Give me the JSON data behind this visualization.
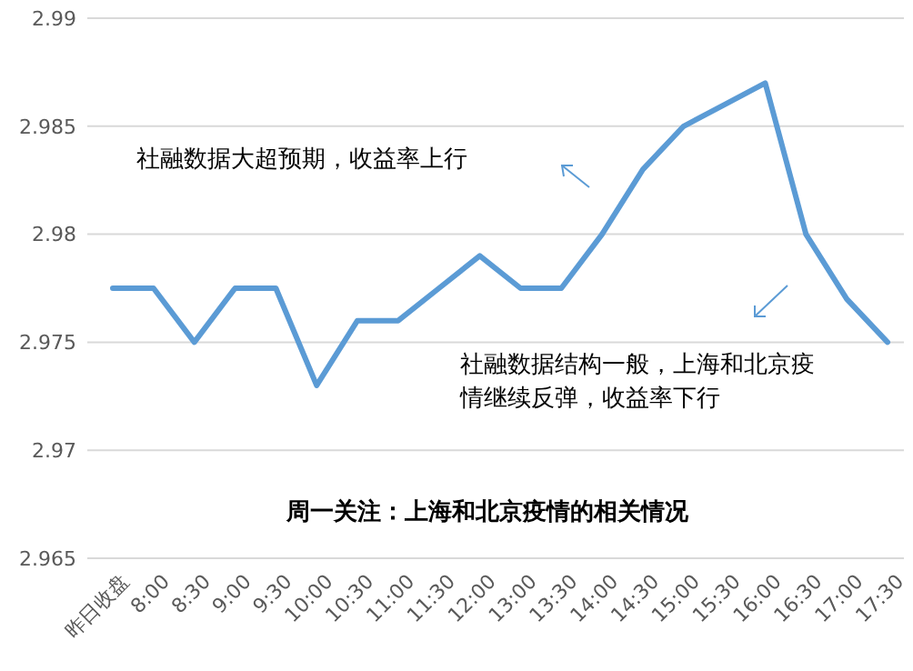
{
  "chart_data": {
    "type": "line",
    "title": "周一关注：上海和北京疫情的相关情况",
    "categories": [
      "昨日收盘",
      "8:00",
      "8:30",
      "9:00",
      "9:30",
      "10:00",
      "10:30",
      "11:00",
      "11:30",
      "12:00",
      "13:00",
      "13:30",
      "14:00",
      "14:30",
      "15:00",
      "15:30",
      "16:00",
      "16:30",
      "17:00",
      "17:30"
    ],
    "series": [
      {
        "color": "#5b9bd5",
        "values": [
          2.9775,
          2.9775,
          2.975,
          2.9775,
          2.9775,
          2.973,
          2.976,
          2.976,
          2.9775,
          2.979,
          2.9775,
          2.9775,
          2.98,
          2.983,
          2.985,
          2.986,
          2.987,
          2.98,
          2.977,
          2.975
        ]
      }
    ],
    "ylim": [
      2.965,
      2.99
    ],
    "yticks": [
      2.965,
      2.97,
      2.975,
      2.98,
      2.985,
      2.99
    ],
    "grid": "y",
    "marker": "none",
    "line_style": "solid",
    "annotations": [
      "社融数据大超预期，收益率上行",
      "社融数据结构一般，上海和北京疫情继续反弹，收益率下行"
    ]
  }
}
